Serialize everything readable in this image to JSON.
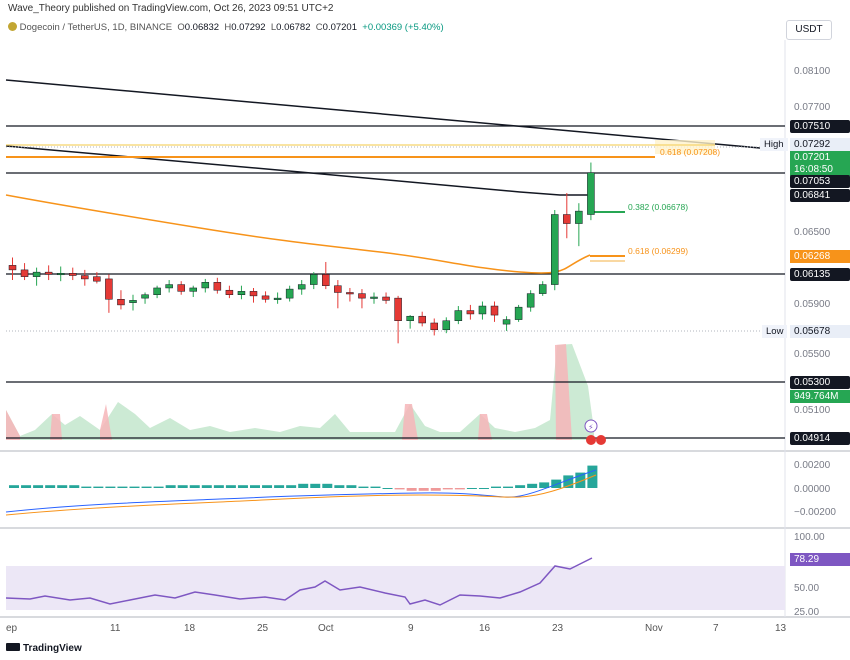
{
  "header": {
    "publisher_line": "Wave_Theory published on TradingView.com, Oct 26, 2023 09:51 UTC+2"
  },
  "symbol": {
    "name": "Dogecoin / TetherUS, 1D, BINANCE",
    "o_label": "O",
    "o_val": "0.06832",
    "h_label": "H",
    "h_val": "0.07292",
    "l_label": "L",
    "l_val": "0.06782",
    "c_label": "C",
    "c_val": "0.07201",
    "change": "+0.00369 (+5.40%)"
  },
  "currency_button": "USDT",
  "price_axis": {
    "ticks": [
      "0.08100",
      "0.07700",
      "0.06500",
      "0.05900",
      "0.05500",
      "0.05100"
    ],
    "labels": {
      "r1": "0.07510",
      "high_tag": "High",
      "high": "0.07292",
      "last": "0.07201",
      "countdown": "16:08:50",
      "r2": "0.07053",
      "r3": "0.06841",
      "ma": "0.06268",
      "s1": "0.06135",
      "low_tag": "Low",
      "low": "0.05678",
      "s2": "0.05300",
      "vol": "949.764M",
      "s3": "0.04914"
    }
  },
  "fib_labels": {
    "f618_top": "0.618 (0.07208)",
    "f382": "0.382 (0.06678)",
    "f618": "0.618 (0.06299)"
  },
  "macd_axis": [
    "0.00200",
    "0.00000",
    "−0.00200"
  ],
  "rsi_axis": {
    "top": "100.00",
    "mid": "50.00",
    "bottom": "25.00",
    "value": "78.29"
  },
  "x_axis": [
    "ep",
    "11",
    "18",
    "25",
    "Oct",
    "9",
    "16",
    "23",
    "Nov",
    "7",
    "13"
  ],
  "footer": {
    "brand": "TradingView"
  },
  "colors": {
    "up": "#26a653",
    "down": "#e53935",
    "ema": "#f7931a",
    "rsi": "#7e57c2",
    "macd_hist": "#26a69a"
  },
  "chart_data": {
    "type": "candlestick",
    "title": "Dogecoin / TetherUS, 1D, BINANCE",
    "candles": [
      [
        0.0638,
        0.0645,
        0.0625,
        0.0634
      ],
      [
        0.0634,
        0.064,
        0.0625,
        0.0628
      ],
      [
        0.0628,
        0.0636,
        0.062,
        0.0632
      ],
      [
        0.0632,
        0.0638,
        0.0625,
        0.063
      ],
      [
        0.063,
        0.0637,
        0.0624,
        0.0631
      ],
      [
        0.0631,
        0.0636,
        0.0625,
        0.0629
      ],
      [
        0.0629,
        0.0634,
        0.062,
        0.0626
      ],
      [
        0.0628,
        0.0632,
        0.0622,
        0.0624
      ],
      [
        0.0626,
        0.063,
        0.0596,
        0.0608
      ],
      [
        0.0608,
        0.0616,
        0.0599,
        0.0603
      ],
      [
        0.0605,
        0.0612,
        0.0598,
        0.0607
      ],
      [
        0.0609,
        0.0614,
        0.0604,
        0.0612
      ],
      [
        0.0612,
        0.062,
        0.0609,
        0.0618
      ],
      [
        0.0618,
        0.0625,
        0.0614,
        0.0621
      ],
      [
        0.0621,
        0.0624,
        0.0612,
        0.0615
      ],
      [
        0.0615,
        0.062,
        0.061,
        0.0618
      ],
      [
        0.0618,
        0.0626,
        0.0614,
        0.0623
      ],
      [
        0.0623,
        0.0627,
        0.0613,
        0.0616
      ],
      [
        0.0616,
        0.062,
        0.0609,
        0.0612
      ],
      [
        0.0612,
        0.062,
        0.0608,
        0.0615
      ],
      [
        0.0615,
        0.0618,
        0.0605,
        0.0611
      ],
      [
        0.0611,
        0.0615,
        0.0605,
        0.0608
      ],
      [
        0.0608,
        0.0614,
        0.0604,
        0.0609
      ],
      [
        0.0609,
        0.062,
        0.0606,
        0.0617
      ],
      [
        0.0617,
        0.0625,
        0.0612,
        0.0621
      ],
      [
        0.0621,
        0.0632,
        0.0617,
        0.063
      ],
      [
        0.063,
        0.0641,
        0.0617,
        0.062
      ],
      [
        0.062,
        0.0625,
        0.06,
        0.0614
      ],
      [
        0.0614,
        0.0618,
        0.0606,
        0.0613
      ],
      [
        0.0613,
        0.0617,
        0.06,
        0.0609
      ],
      [
        0.0609,
        0.0614,
        0.0604,
        0.061
      ],
      [
        0.061,
        0.0614,
        0.0604,
        0.0607
      ],
      [
        0.0609,
        0.0611,
        0.0569,
        0.0589
      ],
      [
        0.0589,
        0.0594,
        0.0582,
        0.0593
      ],
      [
        0.0593,
        0.0597,
        0.0584,
        0.0587
      ],
      [
        0.0587,
        0.0591,
        0.0576,
        0.0581
      ],
      [
        0.0581,
        0.0592,
        0.0578,
        0.0589
      ],
      [
        0.0589,
        0.0602,
        0.0586,
        0.0598
      ],
      [
        0.0598,
        0.0603,
        0.059,
        0.0595
      ],
      [
        0.0595,
        0.0606,
        0.059,
        0.0602
      ],
      [
        0.0602,
        0.0606,
        0.0588,
        0.0594
      ],
      [
        0.0586,
        0.0593,
        0.058,
        0.059
      ],
      [
        0.059,
        0.0603,
        0.0588,
        0.0601
      ],
      [
        0.0601,
        0.0616,
        0.0597,
        0.0613
      ],
      [
        0.0613,
        0.0624,
        0.0611,
        0.0621
      ],
      [
        0.0621,
        0.0687,
        0.0616,
        0.0683
      ],
      [
        0.0683,
        0.0702,
        0.0662,
        0.0675
      ],
      [
        0.0675,
        0.0693,
        0.0655,
        0.0686
      ],
      [
        0.0683,
        0.0729,
        0.0678,
        0.072
      ]
    ],
    "ylim": [
      0.048,
      0.083
    ]
  }
}
